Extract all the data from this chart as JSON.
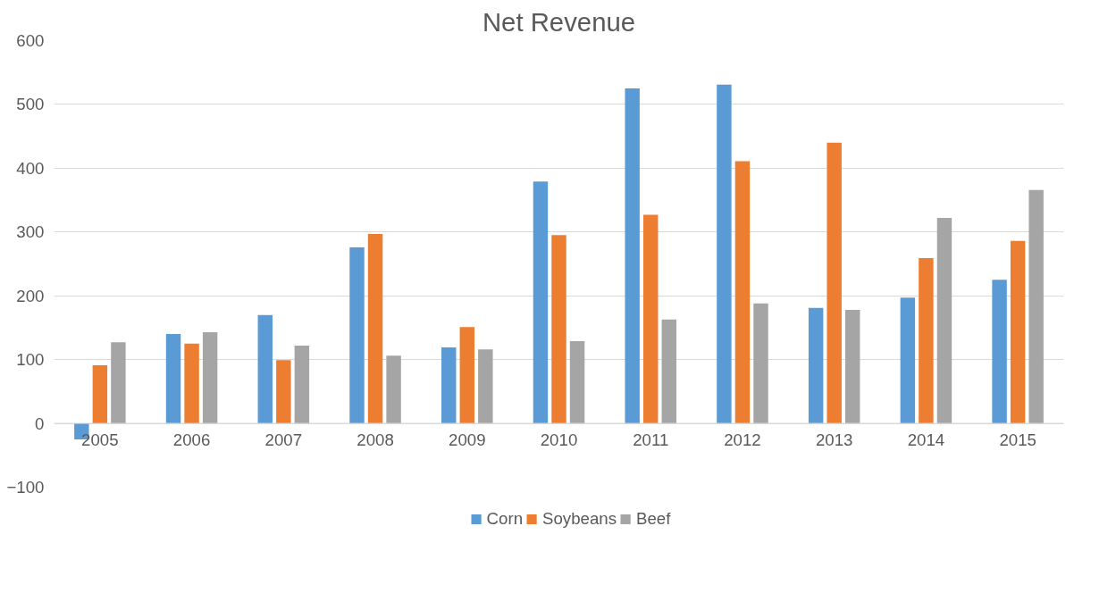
{
  "chart_data": {
    "type": "bar",
    "title": "Net Revenue",
    "categories": [
      "2005",
      "2006",
      "2007",
      "2008",
      "2009",
      "2010",
      "2011",
      "2012",
      "2013",
      "2014",
      "2015"
    ],
    "series": [
      {
        "name": "Corn",
        "color": "#5b9bd5",
        "values": [
          -25,
          140,
          170,
          276,
          119,
          379,
          525,
          531,
          181,
          197,
          225
        ]
      },
      {
        "name": "Soybeans",
        "color": "#ed7d31",
        "values": [
          91,
          125,
          99,
          297,
          151,
          295,
          327,
          411,
          440,
          259,
          286
        ]
      },
      {
        "name": "Beef",
        "color": "#a5a5a5",
        "values": [
          127,
          143,
          122,
          106,
          116,
          129,
          163,
          188,
          178,
          322,
          366
        ]
      }
    ],
    "ylim": [
      -100,
      600
    ],
    "yticks": [
      -100,
      0,
      100,
      200,
      300,
      400,
      500,
      600
    ],
    "grid": "y",
    "legend": "bottom"
  }
}
